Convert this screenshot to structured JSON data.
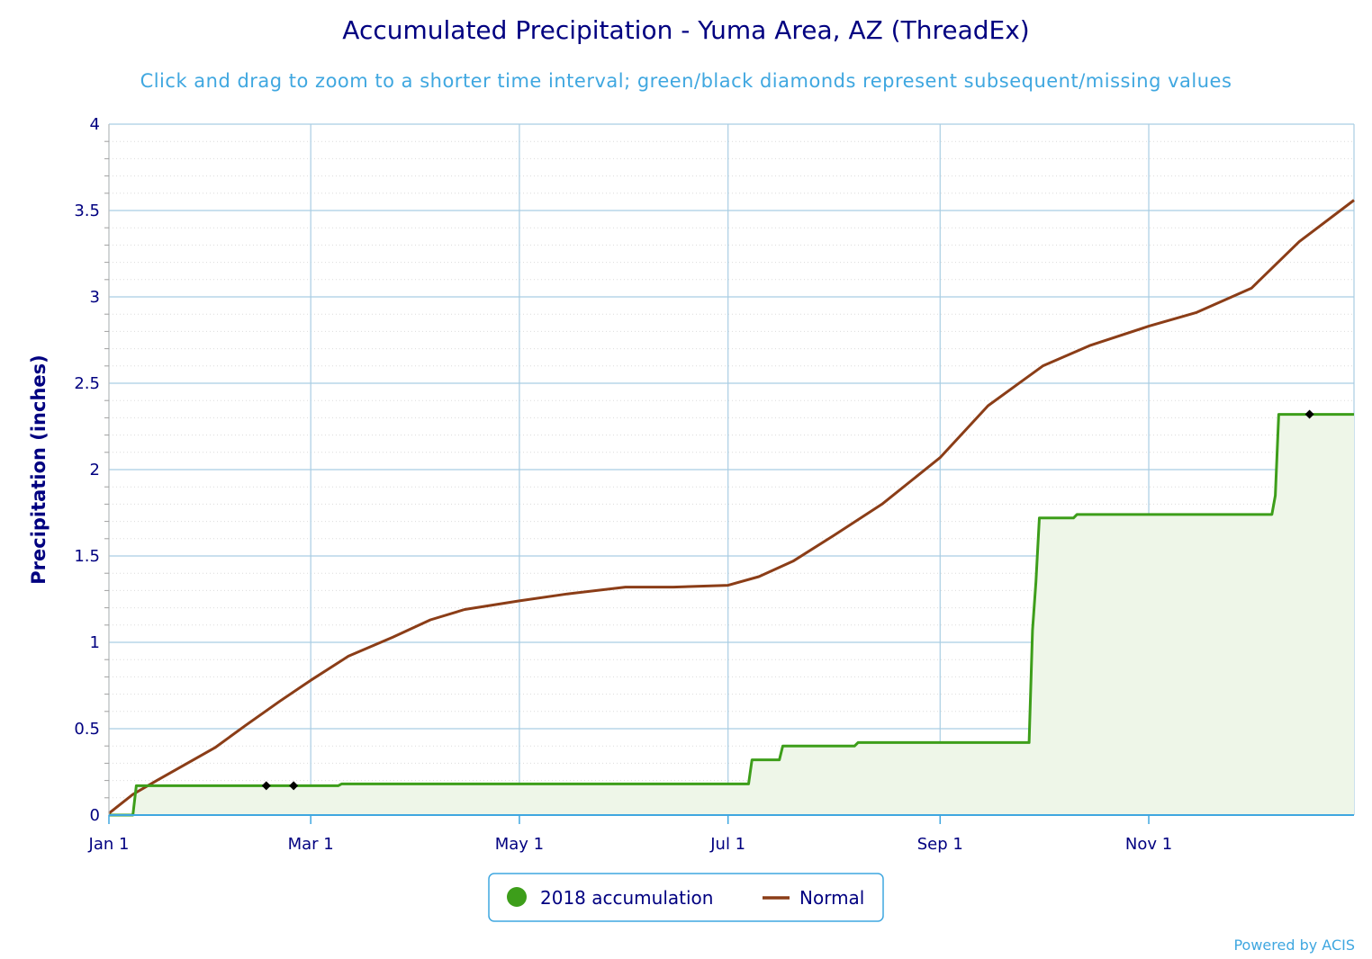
{
  "chart_data": {
    "type": "line",
    "title": "Accumulated Precipitation - Yuma Area, AZ (ThreadEx)",
    "subtitle": "Click and drag to zoom to a shorter time interval; green/black diamonds represent subsequent/missing values",
    "ylabel": "Precipitation (inches)",
    "ylim": [
      0,
      4
    ],
    "yticks": [
      {
        "value": 0,
        "label": "0"
      },
      {
        "value": 0.5,
        "label": "0.5"
      },
      {
        "value": 1,
        "label": "1"
      },
      {
        "value": 1.5,
        "label": "1.5"
      },
      {
        "value": 2,
        "label": "2"
      },
      {
        "value": 2.5,
        "label": "2.5"
      },
      {
        "value": 3,
        "label": "3"
      },
      {
        "value": 3.5,
        "label": "3.5"
      },
      {
        "value": 4,
        "label": "4"
      }
    ],
    "xlim": [
      "2018-01-01",
      "2018-12-31"
    ],
    "xticks": [
      {
        "date": "2018-01-01",
        "label": "Jan 1"
      },
      {
        "date": "2018-03-01",
        "label": "Mar 1"
      },
      {
        "date": "2018-05-01",
        "label": "May 1"
      },
      {
        "date": "2018-07-01",
        "label": "Jul 1"
      },
      {
        "date": "2018-09-01",
        "label": "Sep 1"
      },
      {
        "date": "2018-11-01",
        "label": "Nov 1"
      }
    ],
    "grid": true,
    "legend_position": "bottom-center",
    "series": [
      {
        "name": "2018 accumulation",
        "color": "#3d9e1a",
        "fill": "#eef6e8",
        "points": [
          [
            "2018-01-01",
            0
          ],
          [
            "2018-01-08",
            0
          ],
          [
            "2018-01-09",
            0.17
          ],
          [
            "2018-03-09",
            0.17
          ],
          [
            "2018-03-10",
            0.18
          ],
          [
            "2018-07-07",
            0.18
          ],
          [
            "2018-07-08",
            0.32
          ],
          [
            "2018-07-16",
            0.32
          ],
          [
            "2018-07-17",
            0.4
          ],
          [
            "2018-08-07",
            0.4
          ],
          [
            "2018-08-08",
            0.42
          ],
          [
            "2018-09-27",
            0.42
          ],
          [
            "2018-09-28",
            1.07
          ],
          [
            "2018-09-29",
            1.35
          ],
          [
            "2018-09-30",
            1.72
          ],
          [
            "2018-10-10",
            1.72
          ],
          [
            "2018-10-11",
            1.74
          ],
          [
            "2018-12-07",
            1.74
          ],
          [
            "2018-12-08",
            1.85
          ],
          [
            "2018-12-09",
            2.32
          ],
          [
            "2018-12-31",
            2.32
          ]
        ]
      },
      {
        "name": "Normal",
        "color": "#8b3d17",
        "points": [
          [
            "2018-01-01",
            0.01
          ],
          [
            "2018-01-08",
            0.12
          ],
          [
            "2018-01-15",
            0.2
          ],
          [
            "2018-02-01",
            0.39
          ],
          [
            "2018-02-10",
            0.52
          ],
          [
            "2018-02-20",
            0.66
          ],
          [
            "2018-03-01",
            0.78
          ],
          [
            "2018-03-12",
            0.92
          ],
          [
            "2018-03-25",
            1.03
          ],
          [
            "2018-04-05",
            1.13
          ],
          [
            "2018-04-15",
            1.19
          ],
          [
            "2018-05-01",
            1.24
          ],
          [
            "2018-05-15",
            1.28
          ],
          [
            "2018-06-01",
            1.32
          ],
          [
            "2018-06-15",
            1.32
          ],
          [
            "2018-07-01",
            1.33
          ],
          [
            "2018-07-10",
            1.38
          ],
          [
            "2018-07-20",
            1.47
          ],
          [
            "2018-08-01",
            1.62
          ],
          [
            "2018-08-15",
            1.8
          ],
          [
            "2018-09-01",
            2.07
          ],
          [
            "2018-09-15",
            2.37
          ],
          [
            "2018-10-01",
            2.6
          ],
          [
            "2018-10-15",
            2.72
          ],
          [
            "2018-11-01",
            2.83
          ],
          [
            "2018-11-15",
            2.91
          ],
          [
            "2018-12-01",
            3.05
          ],
          [
            "2018-12-15",
            3.32
          ],
          [
            "2018-12-31",
            3.56
          ]
        ]
      }
    ],
    "missing_markers": [
      {
        "date": "2018-02-16",
        "value": 0.17
      },
      {
        "date": "2018-02-24",
        "value": 0.17
      },
      {
        "date": "2018-12-18",
        "value": 2.32
      }
    ],
    "marker_color": "#000000"
  },
  "legend": {
    "items": [
      {
        "label": "2018 accumulation",
        "symbol": "circle",
        "color": "#3d9e1a"
      },
      {
        "label": "Normal",
        "symbol": "line",
        "color": "#8b3d17"
      }
    ]
  },
  "credit": "Powered by ACIS"
}
